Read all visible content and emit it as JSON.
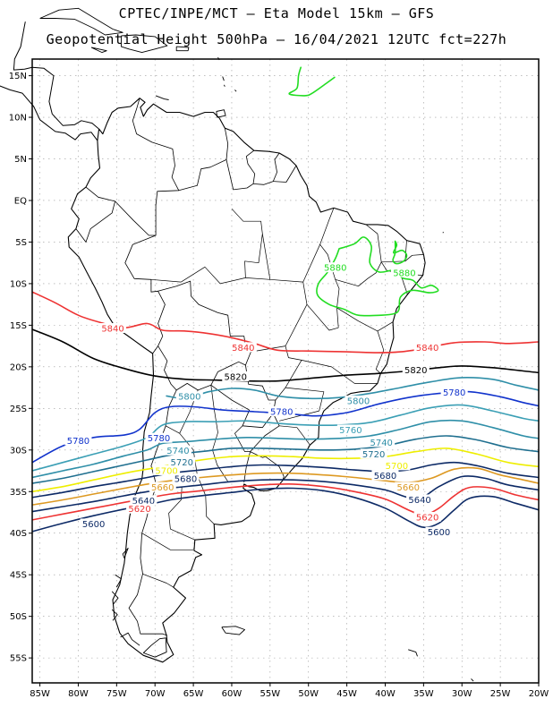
{
  "header": {
    "line1": "CPTEC/INPE/MCT –  Eta Model 15km – GFS",
    "line2": "Geopotential Height 500hPa – 16/04/2021 12UTC fct=227h"
  },
  "map": {
    "lon_range": [
      -86,
      -20
    ],
    "lat_range": [
      -58,
      17
    ],
    "lat_ticks": [
      {
        "lat": 15,
        "label": "15N"
      },
      {
        "lat": 10,
        "label": "10N"
      },
      {
        "lat": 5,
        "label": "5N"
      },
      {
        "lat": 0,
        "label": "EQ"
      },
      {
        "lat": -5,
        "label": "5S"
      },
      {
        "lat": -10,
        "label": "10S"
      },
      {
        "lat": -15,
        "label": "15S"
      },
      {
        "lat": -20,
        "label": "20S"
      },
      {
        "lat": -25,
        "label": "25S"
      },
      {
        "lat": -30,
        "label": "30S"
      },
      {
        "lat": -35,
        "label": "35S"
      },
      {
        "lat": -40,
        "label": "40S"
      },
      {
        "lat": -45,
        "label": "45S"
      },
      {
        "lat": -50,
        "label": "50S"
      },
      {
        "lat": -55,
        "label": "55S"
      }
    ],
    "lon_ticks": [
      {
        "lon": -85,
        "label": "85W"
      },
      {
        "lon": -80,
        "label": "80W"
      },
      {
        "lon": -75,
        "label": "75W"
      },
      {
        "lon": -70,
        "label": "70W"
      },
      {
        "lon": -65,
        "label": "65W"
      },
      {
        "lon": -60,
        "label": "60W"
      },
      {
        "lon": -55,
        "label": "55W"
      },
      {
        "lon": -50,
        "label": "50W"
      },
      {
        "lon": -45,
        "label": "45W"
      },
      {
        "lon": -40,
        "label": "40W"
      },
      {
        "lon": -35,
        "label": "35W"
      },
      {
        "lon": -30,
        "label": "30W"
      },
      {
        "lon": -25,
        "label": "25W"
      },
      {
        "lon": -20,
        "label": "20W"
      }
    ],
    "coast_color": "#000000",
    "grid_color": "#9a9a9a"
  },
  "chart_data": {
    "type": "contour",
    "variable": "Geopotential Height 500hPa",
    "units": "gpm",
    "contours": [
      {
        "level": 5880,
        "color": "#22dd22",
        "labels": [
          {
            "text": "5880",
            "lon": -46.5,
            "lat": -8.2
          },
          {
            "text": "5880",
            "lon": -37.5,
            "lat": -8.8
          }
        ]
      },
      {
        "level": 5840,
        "color": "#ee3333",
        "labels": [
          {
            "text": "5840",
            "lon": -75.5,
            "lat": -15.5
          },
          {
            "text": "5840",
            "lon": -58.5,
            "lat": -17.8
          },
          {
            "text": "5840",
            "lon": -34.5,
            "lat": -17.8
          }
        ]
      },
      {
        "level": 5820,
        "color": "#000000",
        "labels": [
          {
            "text": "5820",
            "lon": -59.5,
            "lat": -21.3
          },
          {
            "text": "5820",
            "lon": -36.0,
            "lat": -20.5
          }
        ]
      },
      {
        "level": 5800,
        "color": "#2f8fa8",
        "labels": [
          {
            "text": "5800",
            "lon": -65.5,
            "lat": -23.7
          },
          {
            "text": "5800",
            "lon": -43.5,
            "lat": -24.2
          }
        ]
      },
      {
        "level": 5780,
        "color": "#1133cc",
        "labels": [
          {
            "text": "5780",
            "lon": -53.5,
            "lat": -25.5
          },
          {
            "text": "5780",
            "lon": -31.0,
            "lat": -23.2
          },
          {
            "text": "5780",
            "lon": -80.0,
            "lat": -29.0
          },
          {
            "text": "5780",
            "lon": -69.5,
            "lat": -28.7
          }
        ]
      },
      {
        "level": 5760,
        "color": "#3b9fb5",
        "labels": [
          {
            "text": "5760",
            "lon": -44.5,
            "lat": -27.7
          }
        ]
      },
      {
        "level": 5740,
        "color": "#2f8fa8",
        "labels": [
          {
            "text": "5740",
            "lon": -67.0,
            "lat": -30.2
          },
          {
            "text": "5740",
            "lon": -40.5,
            "lat": -29.2
          }
        ]
      },
      {
        "level": 5720,
        "color": "#1f6f8f",
        "labels": [
          {
            "text": "5720",
            "lon": -66.5,
            "lat": -31.6
          },
          {
            "text": "5720",
            "lon": -41.5,
            "lat": -30.6
          }
        ]
      },
      {
        "level": 5700,
        "color": "#eeee00",
        "labels": [
          {
            "text": "5700",
            "lon": -68.5,
            "lat": -32.6
          },
          {
            "text": "5700",
            "lon": -38.5,
            "lat": -32.0
          }
        ]
      },
      {
        "level": 5680,
        "color": "#0d2a66",
        "labels": [
          {
            "text": "5680",
            "lon": -66.0,
            "lat": -33.6
          },
          {
            "text": "5680",
            "lon": -40.0,
            "lat": -33.2
          }
        ]
      },
      {
        "level": 5660,
        "color": "#dd9922",
        "labels": [
          {
            "text": "5660",
            "lon": -69.0,
            "lat": -34.6
          },
          {
            "text": "5660",
            "lon": -37.0,
            "lat": -34.6
          }
        ]
      },
      {
        "level": 5640,
        "color": "#0d2a66",
        "labels": [
          {
            "text": "5640",
            "lon": -71.5,
            "lat": -36.2
          },
          {
            "text": "5640",
            "lon": -35.5,
            "lat": -36.1
          }
        ]
      },
      {
        "level": 5620,
        "color": "#ee3333",
        "labels": [
          {
            "text": "5620",
            "lon": -72.0,
            "lat": -37.2
          },
          {
            "text": "5620",
            "lon": -34.5,
            "lat": -38.2
          }
        ]
      },
      {
        "level": 5600,
        "color": "#0d2a66",
        "labels": [
          {
            "text": "5600",
            "lon": -78.0,
            "lat": -39.0
          },
          {
            "text": "5600",
            "lon": -33.0,
            "lat": -40.0
          }
        ]
      }
    ]
  }
}
